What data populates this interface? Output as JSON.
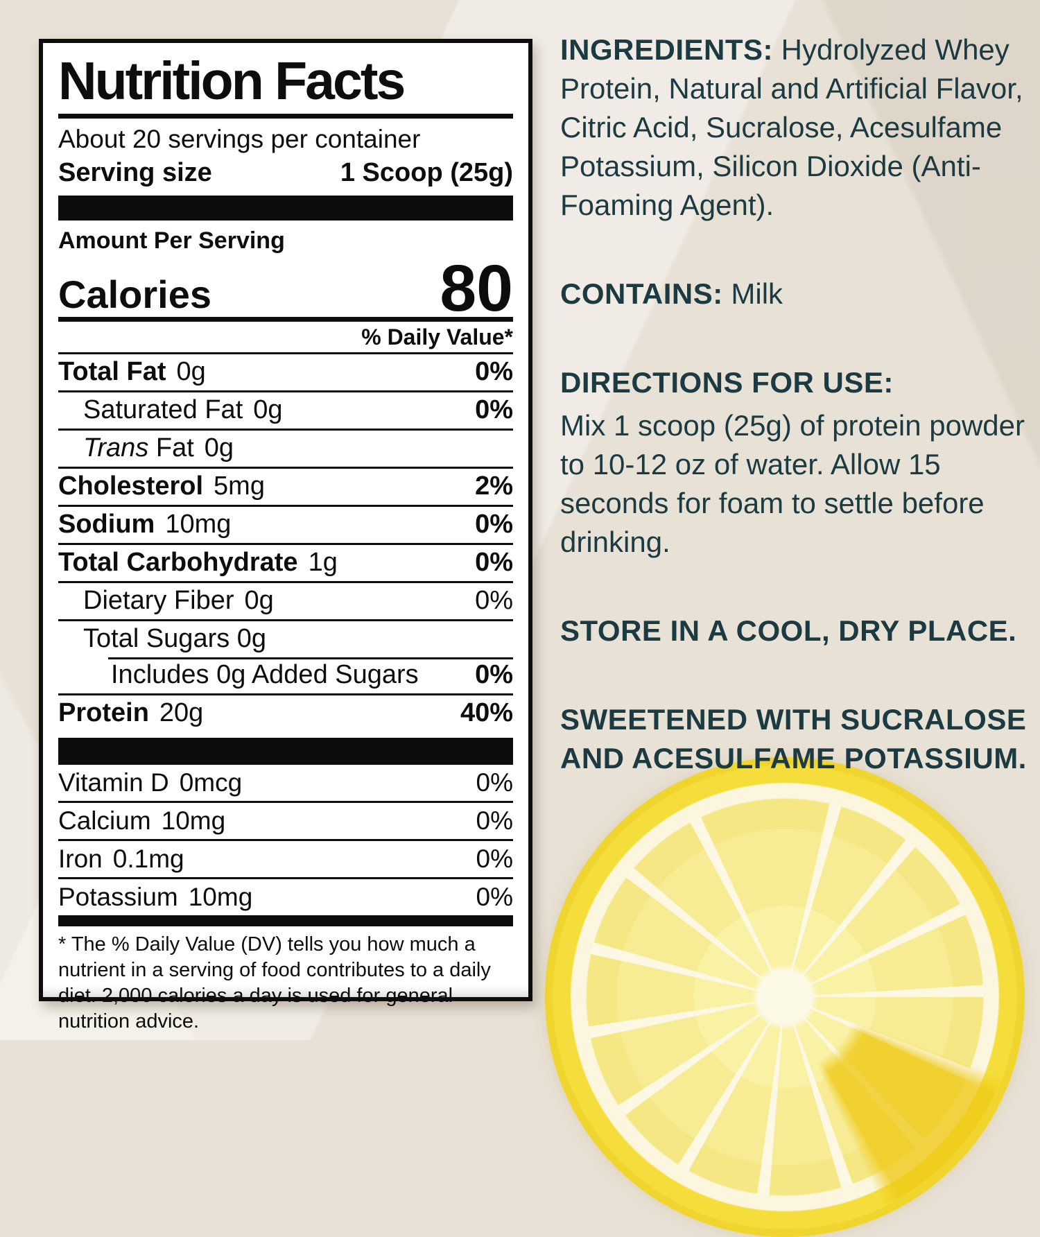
{
  "colors": {
    "background": "#e8e1d6",
    "label_text": "#0d0d0d",
    "label_background": "#ffffff",
    "info_text": "#1b3a41",
    "lemon_rind": "#f5de3b",
    "lemon_flesh": "#f7ec93"
  },
  "nutrition_label": {
    "title": "Nutrition Facts",
    "servings_per_container": "About 20 servings per container",
    "serving_size_label": "Serving size",
    "serving_size_value": "1 Scoop (25g)",
    "amount_per_serving": "Amount Per Serving",
    "calories_label": "Calories",
    "calories_value": "80",
    "daily_value_header": "% Daily Value*",
    "rows": [
      {
        "label": "Total Fat",
        "amount": "0g",
        "dv": "0%",
        "label_bold": true,
        "dv_bold": true,
        "indent": 0
      },
      {
        "label": "Saturated Fat",
        "amount": "0g",
        "dv": "0%",
        "label_bold": false,
        "dv_bold": true,
        "indent": 1
      },
      {
        "label": " Fat",
        "italic_prefix": "Trans",
        "amount": "0g",
        "dv": "",
        "label_bold": false,
        "dv_bold": false,
        "indent": 1
      },
      {
        "label": "Cholesterol",
        "amount": "5mg",
        "dv": "2%",
        "label_bold": true,
        "dv_bold": true,
        "indent": 0
      },
      {
        "label": "Sodium",
        "amount": "10mg",
        "dv": "0%",
        "label_bold": true,
        "dv_bold": true,
        "indent": 0
      },
      {
        "label": "Total Carbohydrate",
        "amount": "1g",
        "dv": "0%",
        "label_bold": true,
        "dv_bold": true,
        "indent": 0
      },
      {
        "label": "Dietary Fiber",
        "amount": "0g",
        "dv": "0%",
        "label_bold": false,
        "dv_bold": false,
        "indent": 1
      },
      {
        "label": "Total Sugars 0g",
        "amount": "",
        "dv": "",
        "label_bold": false,
        "dv_bold": false,
        "indent": 1
      },
      {
        "label": "Includes 0g Added Sugars",
        "amount": "",
        "dv": "0%",
        "label_bold": false,
        "dv_bold": true,
        "indent": 2,
        "sep": "indent"
      },
      {
        "label": "Protein",
        "amount": "20g",
        "dv": "40%",
        "label_bold": true,
        "dv_bold": true,
        "indent": 0
      }
    ],
    "vitamin_rows": [
      {
        "label": "Vitamin D",
        "amount": "0mcg",
        "dv": "0%"
      },
      {
        "label": "Calcium",
        "amount": "10mg",
        "dv": "0%"
      },
      {
        "label": "Iron",
        "amount": "0.1mg",
        "dv": "0%"
      },
      {
        "label": "Potassium",
        "amount": "10mg",
        "dv": "0%"
      }
    ],
    "footnote": "* The % Daily Value (DV) tells you how much a nutrient in a serving of food contributes to a daily diet. 2,000 calories a day is used for general nutrition advice."
  },
  "info_panel": {
    "sections": [
      {
        "name": "ingredients-section",
        "heading": "INGREDIENTS:",
        "heading_style": "inline",
        "body": "Hydrolyzed Whey Protein, Natural and Artificial Flavor, Citric Acid, Sucralose, Acesulfame Potassium, Silicon Dioxide (Anti-Foaming Agent)."
      },
      {
        "name": "contains-section",
        "heading": "CONTAINS:",
        "heading_style": "inline",
        "body": "Milk"
      },
      {
        "name": "directions-section",
        "heading": "DIRECTIONS FOR USE:",
        "heading_style": "block",
        "body": "Mix 1 scoop (25g) of protein powder to 10-12 oz of water. Allow 15 seconds for foam to settle before drinking."
      },
      {
        "name": "storage-note",
        "heading": "STORE IN A COOL, DRY PLACE.",
        "heading_style": "allbold",
        "body": ""
      },
      {
        "name": "sweetener-note",
        "heading": "SWEETENED WITH SUCRALOSE AND ACESULFAME POTASSIUM.",
        "heading_style": "allbold",
        "body": ""
      }
    ]
  },
  "image": {
    "lemon_slice": "half lemon slice photo, bottom right"
  }
}
